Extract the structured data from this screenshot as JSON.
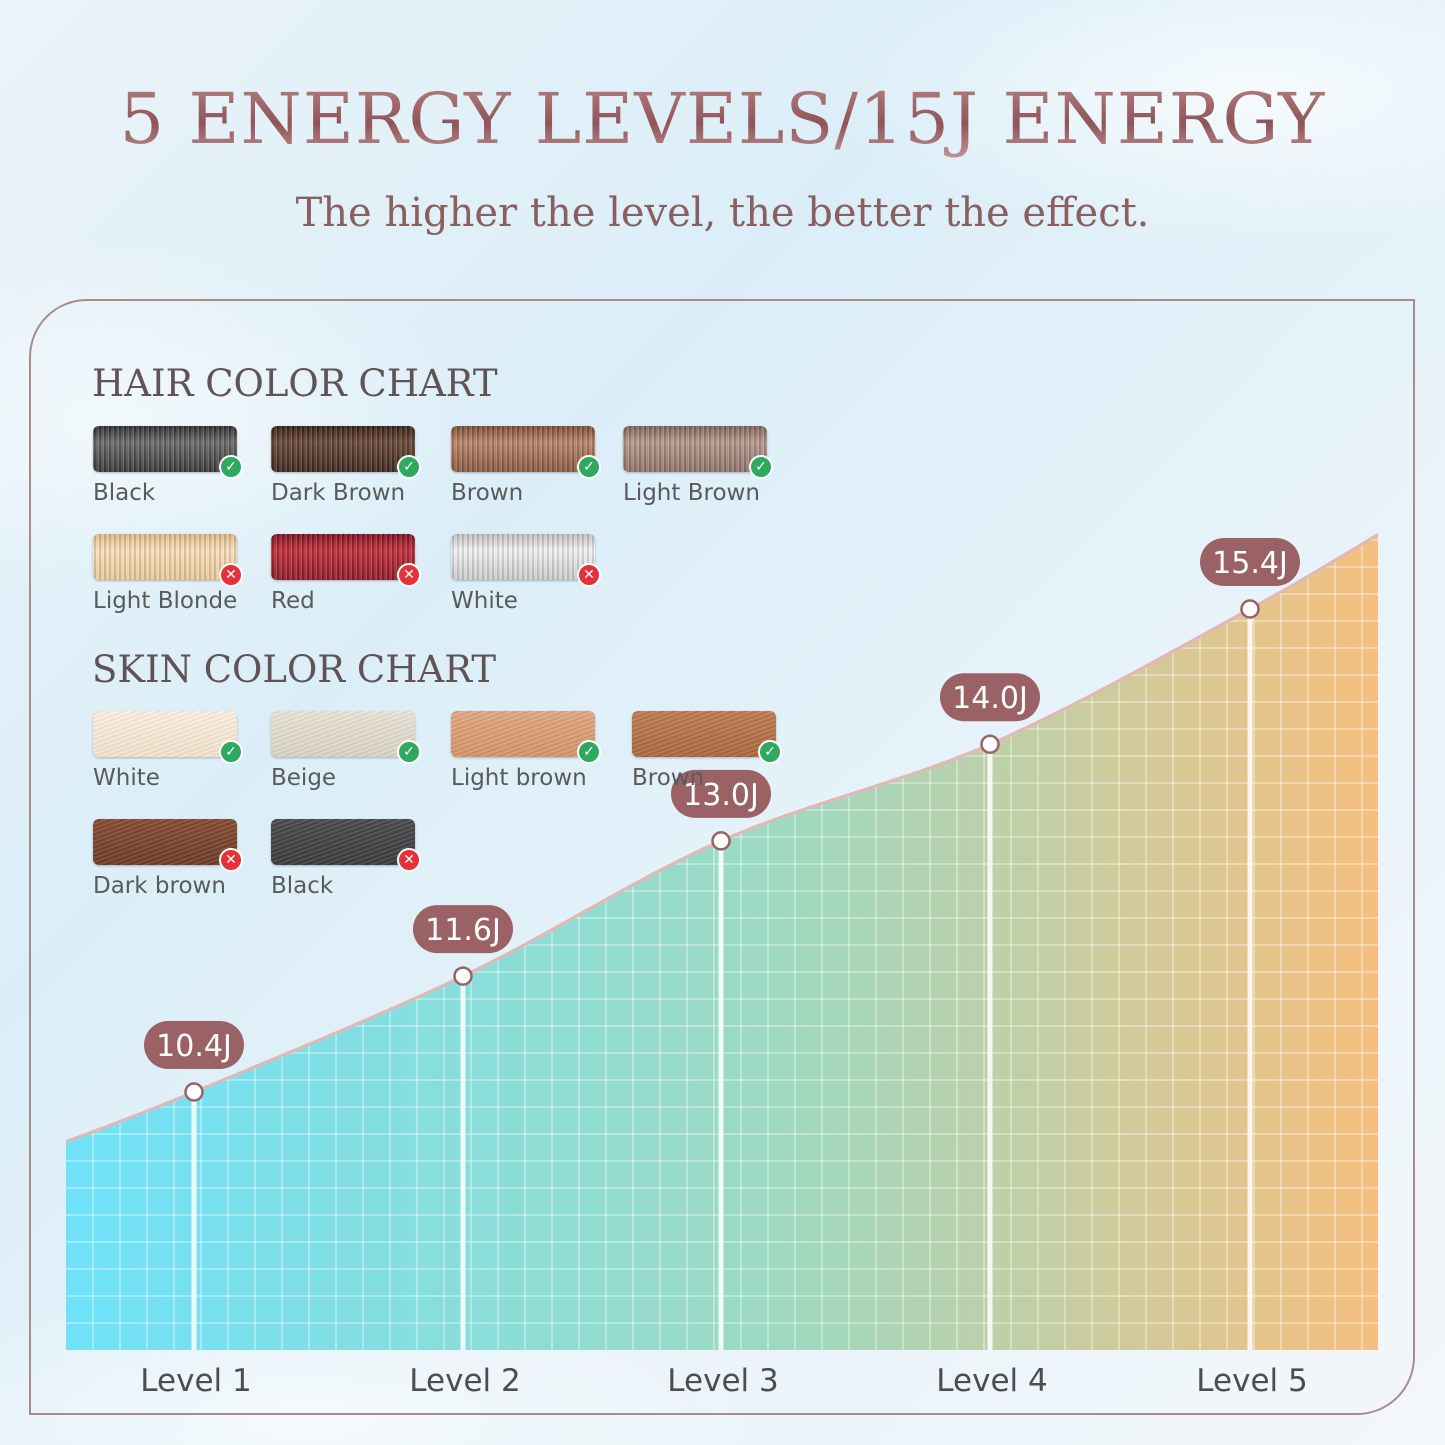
{
  "header": {
    "title": "5 ENERGY LEVELS/15J ENERGY",
    "subtitle": "The higher the level, the better the effect."
  },
  "hair_chart": {
    "title": "HAIR COLOR CHART",
    "items": [
      {
        "label": "Black",
        "suitable": true,
        "colors": [
          "#3a3a3a",
          "#6b6b6b",
          "#2e2e2e"
        ]
      },
      {
        "label": "Dark Brown",
        "suitable": true,
        "colors": [
          "#3e2a20",
          "#6a4a38",
          "#352219"
        ]
      },
      {
        "label": "Brown",
        "suitable": true,
        "colors": [
          "#8a5a44",
          "#b98467",
          "#7a4c38"
        ]
      },
      {
        "label": "Light Brown",
        "suitable": true,
        "colors": [
          "#8f7469",
          "#b5998c",
          "#7d6359"
        ]
      },
      {
        "label": "Light Blonde",
        "suitable": false,
        "colors": [
          "#e8c79a",
          "#f6dfba",
          "#dcb784"
        ]
      },
      {
        "label": "Red",
        "suitable": false,
        "colors": [
          "#8e1d2a",
          "#c2303e",
          "#7a1522"
        ]
      },
      {
        "label": "White",
        "suitable": false,
        "colors": [
          "#c9c9c9",
          "#f0f0f0",
          "#bdbdbd"
        ]
      }
    ]
  },
  "skin_chart": {
    "title": "SKIN COLOR CHART",
    "items": [
      {
        "label": "White",
        "suitable": true,
        "colors": [
          "#f3e1cc",
          "#fbeee0"
        ]
      },
      {
        "label": "Beige",
        "suitable": true,
        "colors": [
          "#d9d3c3",
          "#e8e3d6"
        ]
      },
      {
        "label": "Light brown",
        "suitable": true,
        "colors": [
          "#d39369",
          "#e0a67f"
        ]
      },
      {
        "label": "Brown",
        "suitable": true,
        "colors": [
          "#a9673f",
          "#bd7a51"
        ]
      },
      {
        "label": "Dark brown",
        "suitable": false,
        "colors": [
          "#6e3b26",
          "#844a31"
        ]
      },
      {
        "label": "Black",
        "suitable": false,
        "colors": [
          "#3a3a3c",
          "#4a4a4c"
        ]
      }
    ]
  },
  "chart_data": {
    "type": "area",
    "categories": [
      "Level 1",
      "Level 2",
      "Level 3",
      "Level 4",
      "Level 5"
    ],
    "values": [
      10.4,
      11.6,
      13.0,
      14.0,
      15.4
    ],
    "value_labels": [
      "10.4J",
      "11.6J",
      "13.0J",
      "14.0J",
      "15.4J"
    ],
    "unit": "J",
    "title": "",
    "xlabel": "",
    "ylabel": "",
    "grid": true,
    "colors": {
      "fill_start": "#6fe2fa",
      "fill_mid": "#9ed9c0",
      "fill_end": "#f5bf7e",
      "line": "#e3b7b4",
      "label_bg": "#9a6264"
    }
  }
}
